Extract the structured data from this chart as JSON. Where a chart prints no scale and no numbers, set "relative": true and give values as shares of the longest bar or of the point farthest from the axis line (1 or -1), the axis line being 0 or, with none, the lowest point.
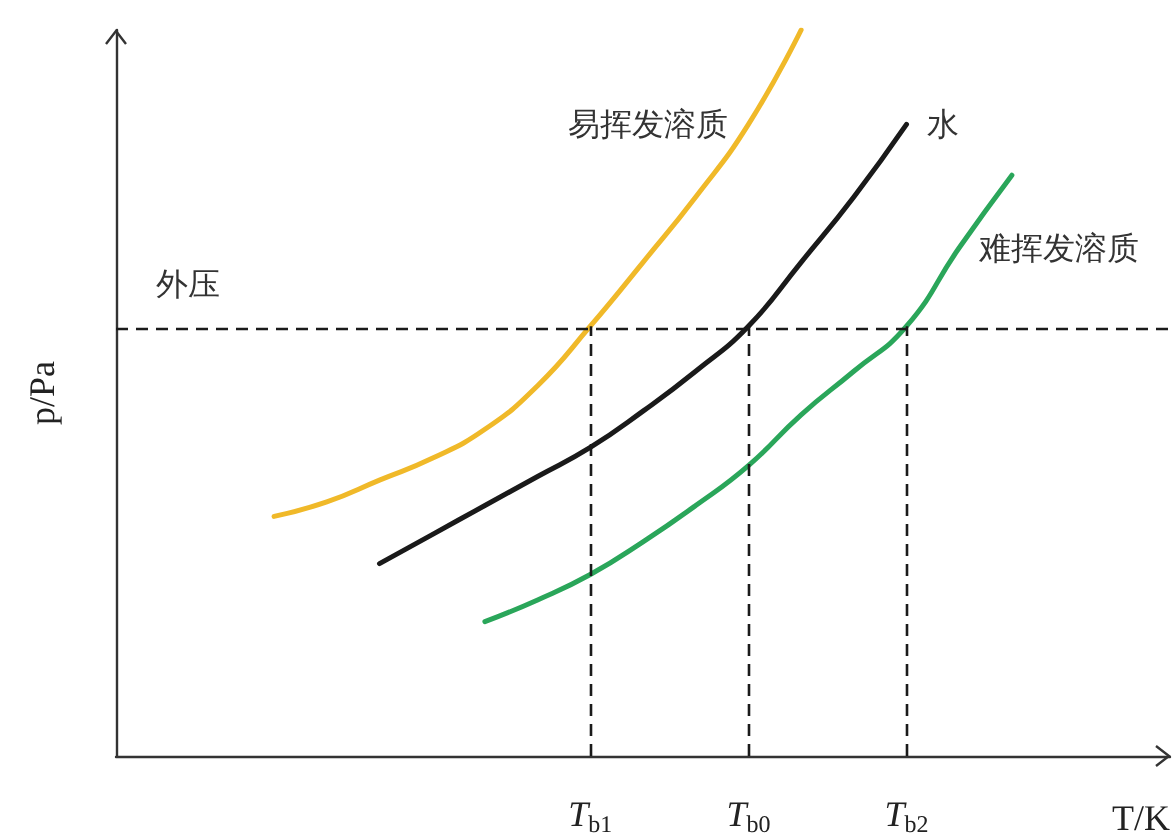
{
  "chart_data": {
    "type": "line",
    "relative": true,
    "xlabel": "T/K",
    "ylabel": "p/Pa",
    "categories": [
      null,
      null,
      null,
      null,
      null,
      null,
      null,
      null,
      null,
      "T$_{b1}$",
      null,
      null,
      "T$_{b0}$",
      null,
      null,
      "T$_{b2}$",
      null,
      null,
      null,
      null,
      null
    ],
    "series": [
      {
        "name": "易挥发溶质",
        "color": "#f0b929",
        "values": [
          null,
          null,
          null,
          0.33,
          0.35,
          0.38,
          0.41,
          0.45,
          0.51,
          0.592,
          0.68,
          0.77,
          0.87,
          1,
          null,
          null,
          null,
          null,
          null,
          null,
          null
        ]
      },
      {
        "name": "水",
        "color": "#1a1a1a",
        "values": [
          null,
          null,
          null,
          null,
          null,
          0.265,
          0.305,
          0.345,
          0.385,
          0.425,
          0.475,
          0.53,
          0.592,
          0.68,
          0.77,
          0.87,
          null,
          null,
          null,
          null,
          null
        ]
      },
      {
        "name": "难挥发溶质",
        "color": "#2aa65a",
        "values": [
          null,
          null,
          null,
          null,
          null,
          null,
          null,
          0.185,
          0.215,
          0.25,
          0.295,
          0.345,
          0.4,
          0.47,
          0.53,
          0.592,
          0.7,
          0.8,
          null,
          null,
          null
        ]
      }
    ],
    "ref_lines": [
      {
        "axis": "y",
        "value": 0.592,
        "label": "外压",
        "line_style": "dashed",
        "color": "#1a1a1a"
      },
      {
        "axis": "x",
        "value": "T$_{b1}$",
        "line_style": "dashed",
        "color": "#1a1a1a"
      },
      {
        "axis": "x",
        "value": "T$_{b0}$",
        "line_style": "dashed",
        "color": "#1a1a1a"
      },
      {
        "axis": "x",
        "value": "T$_{b2}$",
        "line_style": "dashed",
        "color": "#1a1a1a"
      }
    ],
    "grid": false,
    "legend": false,
    "marker": "none",
    "line_style": "solid"
  }
}
